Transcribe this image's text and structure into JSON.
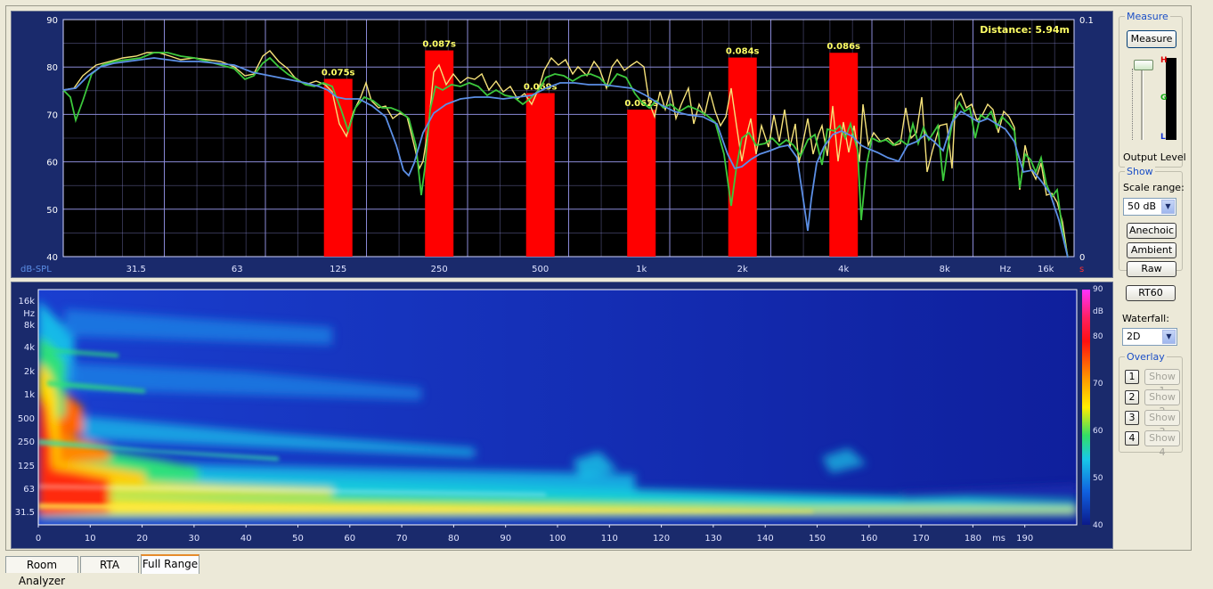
{
  "freq_chart": {
    "y_label": "dB-SPL",
    "x_unit": "Hz",
    "right_unit": "s",
    "distance_text": "Distance: 5.94m",
    "y_ticks": [
      "90",
      "80",
      "70",
      "60",
      "50",
      "40"
    ],
    "x_ticks": [
      "31.5",
      "63",
      "125",
      "250",
      "500",
      "1k",
      "2k",
      "4k",
      "8k",
      "16k"
    ],
    "right_ticks": [
      "0.1",
      "0"
    ],
    "bars": [
      {
        "label": "0.075s",
        "value": 0.075
      },
      {
        "label": "0.087s",
        "value": 0.087
      },
      {
        "label": "0.069s",
        "value": 0.069
      },
      {
        "label": "0.062s",
        "value": 0.062
      },
      {
        "label": "0.084s",
        "value": 0.084
      },
      {
        "label": "0.086s",
        "value": 0.086
      }
    ]
  },
  "spectrogram": {
    "y_ticks": [
      "16k",
      "Hz",
      "8k",
      "4k",
      "2k",
      "1k",
      "500",
      "250",
      "125",
      "63",
      "31.5"
    ],
    "x_ticks": [
      "0",
      "10",
      "20",
      "30",
      "40",
      "50",
      "60",
      "70",
      "80",
      "90",
      "100",
      "110",
      "120",
      "130",
      "140",
      "150",
      "160",
      "170",
      "180",
      "190"
    ],
    "x_unit": "ms",
    "colorbar_ticks": [
      "90",
      "dB",
      "80",
      "70",
      "60",
      "50",
      "40"
    ]
  },
  "sidebar": {
    "measure_group": "Measure",
    "measure_button": "Measure",
    "output_level": "Output Level",
    "meter_labels": {
      "high": "H",
      "green": "G",
      "low": "L"
    },
    "show_group": "Show",
    "scale_range_label": "Scale range:",
    "scale_range_value": "50 dB",
    "anechoic": "Anechoic",
    "ambient": "Ambient",
    "raw": "Raw",
    "rt60": "RT60",
    "waterfall_label": "Waterfall:",
    "waterfall_value": "2D",
    "overlay_group": "Overlay",
    "overlays": [
      {
        "num": "1",
        "label": "Show 1"
      },
      {
        "num": "2",
        "label": "Show 2"
      },
      {
        "num": "3",
        "label": "Show 3"
      },
      {
        "num": "4",
        "label": "Show 4"
      }
    ]
  },
  "tabs": [
    {
      "label": "Room Analyzer"
    },
    {
      "label": "RTA"
    },
    {
      "label": "Full Range",
      "active": true
    }
  ],
  "colors": {
    "plot_bg": "#000000",
    "grid": "#8a8ad6",
    "bar": "#ff0000",
    "bar_label": "#ffff66",
    "trace_yellow": "#f6e27a",
    "trace_green": "#3cc83c",
    "trace_blue": "#5c8fe6",
    "axis_text": "#ffffff"
  }
}
